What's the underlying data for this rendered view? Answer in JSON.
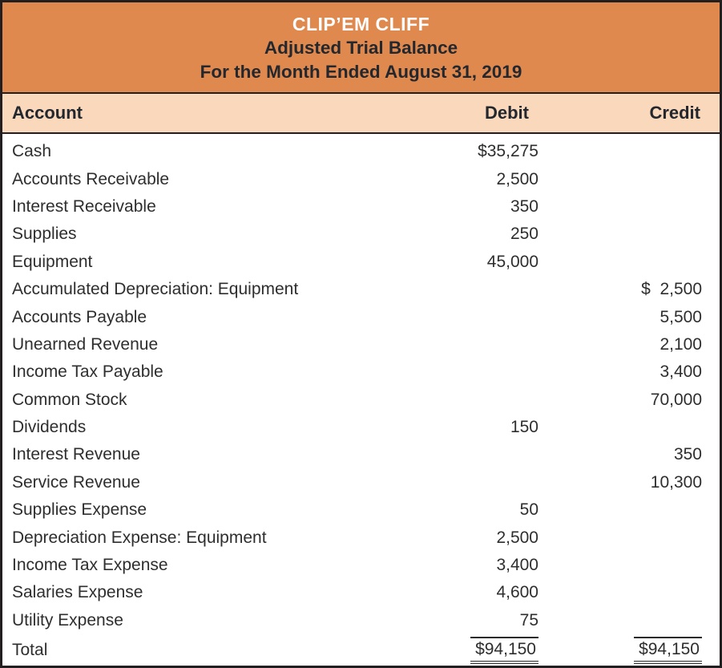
{
  "header": {
    "company": "CLIP’EM CLIFF",
    "report_title": "Adjusted Trial Balance",
    "period": "For the Month Ended August 31, 2019"
  },
  "columns": {
    "account": "Account",
    "debit": "Debit",
    "credit": "Credit"
  },
  "rows": [
    {
      "account": "Cash",
      "debit": "$35,275",
      "credit": ""
    },
    {
      "account": "Accounts Receivable",
      "debit": "2,500",
      "credit": ""
    },
    {
      "account": "Interest Receivable",
      "debit": "350",
      "credit": ""
    },
    {
      "account": "Supplies",
      "debit": "250",
      "credit": ""
    },
    {
      "account": "Equipment",
      "debit": "45,000",
      "credit": ""
    },
    {
      "account": "Accumulated Depreciation: Equipment",
      "debit": "",
      "credit": "$  2,500"
    },
    {
      "account": "Accounts Payable",
      "debit": "",
      "credit": "5,500"
    },
    {
      "account": "Unearned Revenue",
      "debit": "",
      "credit": "2,100"
    },
    {
      "account": "Income Tax Payable",
      "debit": "",
      "credit": "3,400"
    },
    {
      "account": "Common Stock",
      "debit": "",
      "credit": "70,000"
    },
    {
      "account": "Dividends",
      "debit": "150",
      "credit": ""
    },
    {
      "account": "Interest Revenue",
      "debit": "",
      "credit": "350"
    },
    {
      "account": "Service Revenue",
      "debit": "",
      "credit": "10,300"
    },
    {
      "account": "Supplies Expense",
      "debit": "50",
      "credit": ""
    },
    {
      "account": "Depreciation Expense: Equipment",
      "debit": "2,500",
      "credit": ""
    },
    {
      "account": "Income Tax Expense",
      "debit": "3,400",
      "credit": ""
    },
    {
      "account": "Salaries Expense",
      "debit": "4,600",
      "credit": ""
    },
    {
      "account": "Utility Expense",
      "debit": "75",
      "credit": ""
    }
  ],
  "total": {
    "label": "Total",
    "debit": "$94,150",
    "credit": "$94,150"
  },
  "colors": {
    "band_orange": "#E0894E",
    "band_peach": "#FAD8BC",
    "border_dark": "#231F20",
    "title_text": "#FFFFFF",
    "heading_text": "#23272E",
    "body_text": "#2E2E2E"
  }
}
